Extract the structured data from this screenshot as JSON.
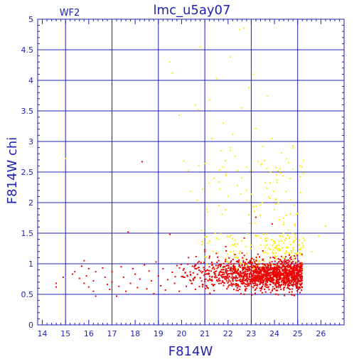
{
  "chart_data": {
    "type": "scatter",
    "title": "lmc_u5ay07",
    "subtitle": "WF2",
    "xlabel": "F814W",
    "ylabel": "F814W  chi",
    "xlim": [
      13.8,
      27.0
    ],
    "ylim": [
      0,
      5
    ],
    "xticks": [
      "14",
      "15",
      "16",
      "17",
      "18",
      "19",
      "20",
      "21",
      "22",
      "23",
      "24",
      "25",
      "26"
    ],
    "yticks": [
      "0",
      "0.5",
      "1",
      "1.5",
      "2",
      "2.5",
      "3",
      "3.5",
      "4",
      "4.5",
      "5"
    ],
    "grid": true,
    "colors": {
      "axis": "#1f1fb4",
      "grid": "#1f1fb4",
      "text": "#1f1fb4",
      "red": "#ee0000",
      "yellow": "#ffee00"
    },
    "series": [
      {
        "color": "red",
        "points": [
          [
            14.6,
            0.62
          ],
          [
            14.6,
            0.68
          ],
          [
            14.9,
            0.78
          ],
          [
            15.3,
            0.83
          ],
          [
            15.4,
            0.87
          ],
          [
            15.6,
            0.76
          ],
          [
            15.7,
            0.96
          ],
          [
            15.8,
            0.68
          ],
          [
            15.8,
            1.05
          ],
          [
            15.9,
            0.8
          ],
          [
            16.0,
            0.62
          ],
          [
            16.0,
            0.92
          ],
          [
            16.2,
            0.55
          ],
          [
            16.2,
            0.72
          ],
          [
            16.3,
            0.87
          ],
          [
            16.3,
            0.47
          ],
          [
            16.6,
            0.93
          ],
          [
            16.7,
            0.78
          ],
          [
            16.8,
            0.66
          ],
          [
            16.9,
            0.58
          ],
          [
            17.0,
            0.87
          ],
          [
            17.0,
            0.7
          ],
          [
            17.2,
            0.47
          ],
          [
            17.3,
            0.63
          ],
          [
            17.4,
            0.95
          ],
          [
            17.5,
            0.78
          ],
          [
            17.6,
            0.55
          ],
          [
            17.7,
            1.52
          ],
          [
            17.8,
            0.68
          ],
          [
            17.9,
            0.92
          ],
          [
            18.0,
            0.83
          ],
          [
            18.1,
            0.61
          ],
          [
            18.2,
            0.75
          ],
          [
            18.3,
            2.67
          ],
          [
            18.4,
            0.98
          ],
          [
            18.5,
            0.59
          ],
          [
            18.6,
            0.88
          ],
          [
            18.7,
            0.72
          ],
          [
            18.8,
            0.51
          ],
          [
            18.9,
            1.03
          ],
          [
            19.0,
            0.8
          ],
          [
            19.1,
            0.64
          ],
          [
            19.2,
            0.92
          ],
          [
            19.3,
            0.57
          ],
          [
            19.4,
            0.74
          ],
          [
            19.5,
            1.48
          ],
          [
            19.6,
            0.86
          ],
          [
            19.7,
            0.68
          ],
          [
            19.8,
            0.97
          ],
          [
            19.9,
            0.55
          ],
          [
            20.0,
            0.79
          ],
          [
            20.1,
            0.92
          ],
          [
            20.2,
            0.63
          ],
          [
            20.3,
            1.1
          ],
          [
            20.4,
            0.72
          ],
          [
            20.5,
            0.85
          ],
          [
            20.6,
            0.58
          ],
          [
            20.7,
            1.02
          ],
          [
            20.8,
            0.77
          ],
          [
            20.9,
            0.66
          ],
          [
            21.0,
            1.2
          ],
          [
            21.0,
            0.83
          ],
          [
            21.1,
            0.61
          ],
          [
            21.2,
            0.95
          ],
          [
            21.3,
            0.74
          ],
          [
            21.4,
            0.56
          ],
          [
            21.5,
            0.88
          ],
          [
            21.6,
            1.05
          ],
          [
            21.7,
            0.68
          ],
          [
            21.8,
            0.79
          ],
          [
            21.9,
            1.28
          ],
          [
            22.0,
            0.62
          ],
          [
            22.1,
            0.91
          ],
          [
            22.2,
            0.73
          ],
          [
            22.3,
            1.15
          ],
          [
            22.4,
            0.84
          ],
          [
            22.5,
            0.58
          ],
          [
            22.6,
            0.97
          ],
          [
            22.7,
            1.42
          ],
          [
            22.8,
            0.76
          ],
          [
            22.9,
            0.65
          ],
          [
            23.0,
            1.08
          ],
          [
            23.1,
            0.81
          ],
          [
            23.2,
            1.76
          ],
          [
            23.3,
            0.93
          ],
          [
            23.4,
            0.69
          ],
          [
            23.5,
            1.21
          ],
          [
            23.6,
            0.86
          ],
          [
            23.7,
            0.72
          ],
          [
            23.8,
            1.02
          ],
          [
            23.9,
            1.65
          ],
          [
            24.0,
            0.79
          ],
          [
            24.1,
            0.94
          ],
          [
            24.2,
            0.66
          ],
          [
            24.3,
            1.12
          ],
          [
            24.4,
            0.85
          ],
          [
            24.5,
            0.74
          ],
          [
            24.6,
            0.98
          ],
          [
            24.7,
            0.68
          ],
          [
            24.8,
            0.88
          ],
          [
            24.9,
            0.77
          ],
          [
            25.0,
            0.95
          ],
          [
            25.1,
            0.71
          ]
        ],
        "cloud": {
          "n": 1500,
          "xrange": [
            19.0,
            25.2
          ],
          "xpeak": 23.5,
          "ymean": 0.82,
          "ysd": 0.12
        }
      },
      {
        "color": "yellow",
        "points": [
          [
            15.0,
            2.72
          ],
          [
            19.5,
            4.3
          ],
          [
            19.6,
            4.12
          ],
          [
            19.9,
            3.43
          ],
          [
            20.1,
            2.68
          ],
          [
            20.3,
            2.52
          ],
          [
            20.4,
            2.18
          ],
          [
            20.6,
            3.6
          ],
          [
            20.7,
            3.52
          ],
          [
            20.8,
            4.55
          ],
          [
            20.9,
            2.22
          ],
          [
            21.0,
            2.64
          ],
          [
            21.1,
            1.85
          ],
          [
            21.2,
            3.68
          ],
          [
            21.3,
            3.05
          ],
          [
            21.4,
            2.4
          ],
          [
            21.5,
            4.03
          ],
          [
            21.6,
            1.95
          ],
          [
            21.7,
            2.85
          ],
          [
            21.8,
            3.3
          ],
          [
            21.9,
            2.46
          ],
          [
            22.0,
            2.1
          ],
          [
            22.1,
            4.38
          ],
          [
            22.2,
            3.12
          ],
          [
            22.3,
            2.76
          ],
          [
            22.4,
            2.28
          ],
          [
            22.5,
            4.83
          ],
          [
            22.6,
            3.55
          ],
          [
            22.7,
            4.85
          ],
          [
            22.8,
            2.58
          ],
          [
            22.9,
            3.88
          ],
          [
            23.0,
            2.14
          ],
          [
            23.1,
            4.1
          ],
          [
            23.2,
            3.21
          ],
          [
            23.3,
            2.67
          ],
          [
            23.4,
            1.96
          ],
          [
            23.5,
            2.92
          ],
          [
            23.6,
            2.33
          ],
          [
            23.7,
            3.74
          ],
          [
            23.8,
            2.07
          ],
          [
            23.9,
            3.05
          ],
          [
            24.0,
            1.88
          ],
          [
            24.1,
            2.45
          ],
          [
            24.2,
            1.72
          ],
          [
            24.3,
            2.81
          ],
          [
            24.4,
            1.64
          ],
          [
            24.5,
            2.18
          ],
          [
            24.6,
            1.55
          ],
          [
            24.7,
            2.05
          ],
          [
            24.8,
            2.93
          ],
          [
            24.9,
            1.48
          ],
          [
            25.0,
            1.82
          ],
          [
            25.1,
            2.6
          ],
          [
            25.3,
            1.38
          ],
          [
            25.6,
            1.2
          ],
          [
            25.9,
            1.45
          ],
          [
            26.2,
            1.62
          ]
        ],
        "cloud": {
          "n": 260,
          "xrange": [
            20.6,
            25.3
          ],
          "ymin": 0.9,
          "ymax": 1.5
        }
      }
    ]
  }
}
